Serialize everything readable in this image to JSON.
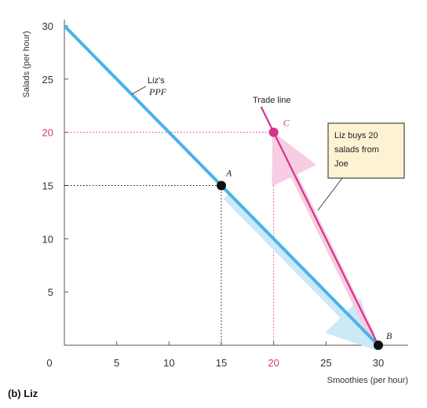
{
  "chart_data": {
    "type": "line",
    "panel_label": "(b) Liz",
    "xlabel": "Smoothies (per hour)",
    "ylabel": "Salads (per hour)",
    "xlim": [
      0,
      30
    ],
    "ylim": [
      0,
      30
    ],
    "x_ticks": [
      "0",
      "5",
      "10",
      "15",
      "20",
      "25",
      "30"
    ],
    "y_ticks": [
      "5",
      "10",
      "15",
      "20",
      "25",
      "30"
    ],
    "highlight_tick": "20",
    "series": [
      {
        "name": "Liz's PPF",
        "x": [
          0,
          30
        ],
        "y": [
          30,
          0
        ],
        "color": "#48b3e8"
      },
      {
        "name": "Trade line",
        "x": [
          30,
          20
        ],
        "y": [
          0,
          20
        ],
        "color": "#d6338a"
      }
    ],
    "points": [
      {
        "label": "A",
        "x": 15,
        "y": 15,
        "color": "#111111"
      },
      {
        "label": "B",
        "x": 30,
        "y": 0,
        "color": "#111111"
      },
      {
        "label": "C",
        "x": 20,
        "y": 20,
        "color": "#d6338a"
      }
    ],
    "annotations": {
      "ppf_label_line1": "Liz's",
      "ppf_label_line2": "PPF",
      "trade_line_label": "Trade line",
      "callout_line1": "Liz buys 20",
      "callout_line2": "salads from",
      "callout_line3": "Joe"
    },
    "colors": {
      "ppf": "#48b3e8",
      "ppf_shadow": "#cde8f6",
      "trade": "#d6338a",
      "trade_shadow": "#f6cde2",
      "callout_fill": "#fdf3d3",
      "guide_black": "#111111",
      "guide_pink": "#d6338a"
    }
  }
}
